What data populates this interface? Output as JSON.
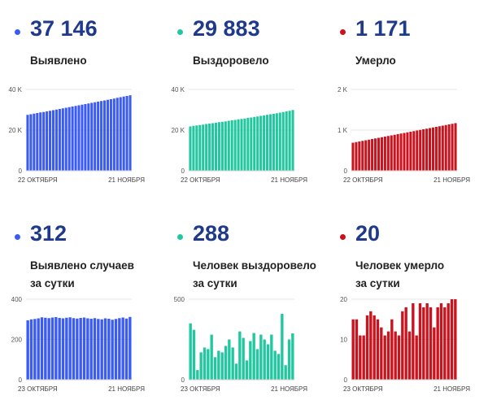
{
  "panels": [
    {
      "value": "37 146",
      "label_lines": [
        "Выявлено"
      ],
      "color": "#3b5bf5"
    },
    {
      "value": "29 883",
      "label_lines": [
        "Выздоровело"
      ],
      "color": "#22c7a0"
    },
    {
      "value": "1 171",
      "label_lines": [
        "Умерло"
      ],
      "color": "#c8141e"
    },
    {
      "value": "312",
      "label_lines": [
        "Выявлено случаев",
        "за сутки"
      ],
      "color": "#3b5bf5"
    },
    {
      "value": "288",
      "label_lines": [
        "Человек выздоровело",
        "за сутки"
      ],
      "color": "#22c7a0"
    },
    {
      "value": "20",
      "label_lines": [
        "Человек умерло",
        "за сутки"
      ],
      "color": "#c8141e"
    }
  ],
  "chart_data": [
    {
      "type": "bar",
      "x_start_label": "22 ОКТЯБРЯ",
      "x_end_label": "21 НОЯБРЯ",
      "ylim": [
        0,
        40000
      ],
      "yticks": [
        {
          "v": 0,
          "t": "0"
        },
        {
          "v": 20000,
          "t": "20 K"
        },
        {
          "v": 40000,
          "t": "40 K"
        }
      ],
      "values": [
        27500,
        27800,
        28100,
        28400,
        28700,
        28900,
        29200,
        29500,
        29800,
        30100,
        30400,
        30700,
        31000,
        31300,
        31600,
        31900,
        32200,
        32500,
        32800,
        33100,
        33400,
        33700,
        34000,
        34300,
        34600,
        34900,
        35200,
        35500,
        35900,
        36200,
        36500,
        36800,
        37146
      ]
    },
    {
      "type": "bar",
      "x_start_label": "22 ОКТЯБРЯ",
      "x_end_label": "21 НОЯБРЯ",
      "ylim": [
        0,
        40000
      ],
      "yticks": [
        {
          "v": 0,
          "t": "0"
        },
        {
          "v": 20000,
          "t": "20 K"
        },
        {
          "v": 40000,
          "t": "40 K"
        }
      ],
      "values": [
        21800,
        22100,
        22300,
        22500,
        22700,
        23000,
        23200,
        23400,
        23600,
        23900,
        24100,
        24300,
        24600,
        24800,
        25000,
        25300,
        25500,
        25700,
        26000,
        26200,
        26500,
        26700,
        27000,
        27200,
        27500,
        27800,
        28000,
        28300,
        28600,
        28900,
        29200,
        29500,
        29883
      ]
    },
    {
      "type": "bar",
      "x_start_label": "22 ОКТЯБРЯ",
      "x_end_label": "21 НОЯБРЯ",
      "ylim": [
        0,
        2000
      ],
      "yticks": [
        {
          "v": 0,
          "t": "0"
        },
        {
          "v": 1000,
          "t": "1 K"
        },
        {
          "v": 2000,
          "t": "2 K"
        }
      ],
      "values": [
        690,
        705,
        720,
        735,
        750,
        765,
        780,
        795,
        810,
        825,
        840,
        855,
        870,
        885,
        900,
        915,
        930,
        945,
        960,
        975,
        990,
        1005,
        1020,
        1035,
        1050,
        1065,
        1080,
        1095,
        1110,
        1125,
        1140,
        1155,
        1171
      ]
    },
    {
      "type": "bar",
      "x_start_label": "23 ОКТЯБРЯ",
      "x_end_label": "21 НОЯБРЯ",
      "ylim": [
        0,
        400
      ],
      "yticks": [
        {
          "v": 0,
          "t": "0"
        },
        {
          "v": 200,
          "t": "200"
        },
        {
          "v": 400,
          "t": "400"
        }
      ],
      "values": [
        295,
        300,
        302,
        305,
        310,
        308,
        306,
        309,
        311,
        307,
        305,
        308,
        310,
        306,
        304,
        307,
        309,
        305,
        303,
        306,
        302,
        300,
        305,
        303,
        298,
        302,
        306,
        309,
        304,
        312
      ]
    },
    {
      "type": "bar",
      "x_start_label": "23 ОКТЯБРЯ",
      "x_end_label": "21 НОЯБРЯ",
      "ylim": [
        0,
        500
      ],
      "yticks": [
        {
          "v": 0,
          "t": "0"
        },
        {
          "v": 500,
          "t": "500"
        }
      ],
      "values": [
        350,
        310,
        60,
        170,
        200,
        190,
        280,
        140,
        180,
        170,
        210,
        250,
        200,
        100,
        300,
        260,
        120,
        240,
        290,
        190,
        280,
        250,
        220,
        280,
        180,
        160,
        410,
        90,
        250,
        288
      ]
    },
    {
      "type": "bar",
      "x_start_label": "23 ОКТЯБРЯ",
      "x_end_label": "21 НОЯБРЯ",
      "ylim": [
        0,
        20
      ],
      "yticks": [
        {
          "v": 0,
          "t": "0"
        },
        {
          "v": 10,
          "t": "10"
        },
        {
          "v": 20,
          "t": "20"
        }
      ],
      "values": [
        15,
        15,
        11,
        11,
        16,
        17,
        16,
        15,
        13,
        11,
        12,
        15,
        12,
        11,
        17,
        18,
        12,
        19,
        11,
        19,
        18,
        19,
        18,
        13,
        18,
        19,
        18,
        19,
        20,
        20
      ]
    }
  ]
}
